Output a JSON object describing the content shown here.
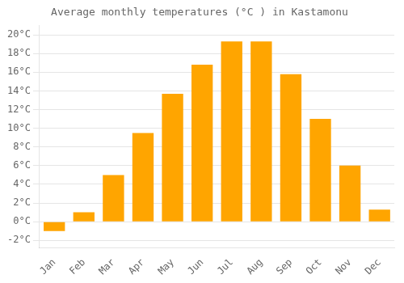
{
  "chart_data": {
    "type": "bar",
    "title": "Average monthly temperatures (°C ) in Kastamonu",
    "categories": [
      "Jan",
      "Feb",
      "Mar",
      "Apr",
      "May",
      "Jun",
      "Jul",
      "Aug",
      "Sep",
      "Oct",
      "Nov",
      "Dec"
    ],
    "values": [
      -1.0,
      1.0,
      5.0,
      9.5,
      13.7,
      16.8,
      19.3,
      19.3,
      15.8,
      11.0,
      6.0,
      1.3
    ],
    "color": "#FFA500",
    "ylim": [
      -2.8,
      21.0
    ],
    "yticks": [
      {
        "value": -2,
        "label": "-2°C"
      },
      {
        "value": 0,
        "label": "0°C"
      },
      {
        "value": 2,
        "label": "2°C"
      },
      {
        "value": 4,
        "label": "4°C"
      },
      {
        "value": 6,
        "label": "6°C"
      },
      {
        "value": 8,
        "label": "8°C"
      },
      {
        "value": 10,
        "label": "10°C"
      },
      {
        "value": 12,
        "label": "12°C"
      },
      {
        "value": 14,
        "label": "14°C"
      },
      {
        "value": 16,
        "label": "16°C"
      },
      {
        "value": 18,
        "label": "18°C"
      },
      {
        "value": 20,
        "label": "20°C"
      }
    ],
    "grid": true
  }
}
